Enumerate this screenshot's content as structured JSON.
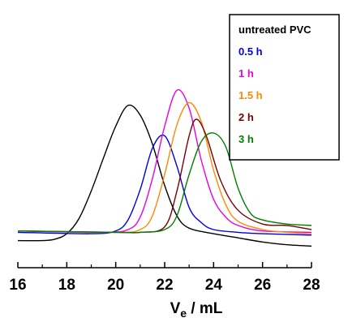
{
  "chart_data": {
    "type": "line",
    "title": "",
    "xlabel": "V",
    "xlabel_sub": "e",
    "xlabel_unit": " / mL",
    "ylabel": "",
    "xlim": [
      16,
      28
    ],
    "ylim": [
      -0.06,
      1.12
    ],
    "xticks": [
      "16",
      "18",
      "20",
      "22",
      "24",
      "26",
      "28"
    ],
    "legend_position": "top-right",
    "grid": false,
    "series": [
      {
        "name": "untreated PVC",
        "color": "#000000",
        "points": [
          [
            16,
            0.02
          ],
          [
            17,
            0.02
          ],
          [
            17.5,
            0.03
          ],
          [
            18,
            0.07
          ],
          [
            18.5,
            0.18
          ],
          [
            19,
            0.38
          ],
          [
            19.5,
            0.62
          ],
          [
            20,
            0.85
          ],
          [
            20.5,
            1.0
          ],
          [
            21,
            0.93
          ],
          [
            21.5,
            0.72
          ],
          [
            22,
            0.42
          ],
          [
            22.5,
            0.2
          ],
          [
            23,
            0.11
          ],
          [
            24,
            0.07
          ],
          [
            25,
            0.04
          ],
          [
            26,
            0.01
          ],
          [
            27,
            -0.01
          ],
          [
            28,
            -0.02
          ]
        ]
      },
      {
        "name": "0.5 h",
        "color": "#0000e6",
        "points": [
          [
            16,
            0.08
          ],
          [
            19,
            0.07
          ],
          [
            20,
            0.09
          ],
          [
            20.5,
            0.17
          ],
          [
            21,
            0.39
          ],
          [
            21.5,
            0.69
          ],
          [
            22,
            0.78
          ],
          [
            22.5,
            0.56
          ],
          [
            23,
            0.26
          ],
          [
            23.5,
            0.15
          ],
          [
            24,
            0.1
          ],
          [
            25,
            0.08
          ],
          [
            26,
            0.07
          ],
          [
            28,
            0.06
          ]
        ]
      },
      {
        "name": "1 h",
        "color": "#e600e6",
        "points": [
          [
            16,
            0.09
          ],
          [
            19.5,
            0.08
          ],
          [
            20.5,
            0.1
          ],
          [
            21,
            0.19
          ],
          [
            21.5,
            0.47
          ],
          [
            22,
            0.85
          ],
          [
            22.5,
            1.11
          ],
          [
            23,
            0.98
          ],
          [
            23.5,
            0.6
          ],
          [
            24,
            0.32
          ],
          [
            24.5,
            0.19
          ],
          [
            25,
            0.13
          ],
          [
            26,
            0.09
          ],
          [
            28,
            0.08
          ]
        ]
      },
      {
        "name": "1.5 h",
        "color": "#ff8800",
        "points": [
          [
            16,
            0.09
          ],
          [
            20,
            0.08
          ],
          [
            21,
            0.1
          ],
          [
            21.5,
            0.2
          ],
          [
            22,
            0.5
          ],
          [
            22.5,
            0.86
          ],
          [
            23,
            1.02
          ],
          [
            23.5,
            0.88
          ],
          [
            24,
            0.53
          ],
          [
            24.5,
            0.28
          ],
          [
            25,
            0.16
          ],
          [
            26,
            0.1
          ],
          [
            27,
            0.08
          ],
          [
            28,
            0.07
          ]
        ]
      },
      {
        "name": "2 h",
        "color": "#7a0000",
        "points": [
          [
            16,
            0.09
          ],
          [
            20,
            0.08
          ],
          [
            21,
            0.08
          ],
          [
            22,
            0.12
          ],
          [
            22.5,
            0.38
          ],
          [
            23,
            0.78
          ],
          [
            23.3,
            0.9
          ],
          [
            23.7,
            0.78
          ],
          [
            24.3,
            0.45
          ],
          [
            25,
            0.24
          ],
          [
            26,
            0.14
          ],
          [
            27,
            0.13
          ],
          [
            28,
            0.1
          ]
        ]
      },
      {
        "name": "3 h",
        "color": "#008000",
        "points": [
          [
            16,
            0.09
          ],
          [
            20,
            0.08
          ],
          [
            21,
            0.08
          ],
          [
            22,
            0.1
          ],
          [
            22.5,
            0.2
          ],
          [
            23,
            0.5
          ],
          [
            23.5,
            0.74
          ],
          [
            24,
            0.8
          ],
          [
            24.5,
            0.7
          ],
          [
            25,
            0.4
          ],
          [
            25.5,
            0.22
          ],
          [
            26,
            0.17
          ],
          [
            27,
            0.14
          ],
          [
            28,
            0.13
          ]
        ]
      }
    ]
  }
}
